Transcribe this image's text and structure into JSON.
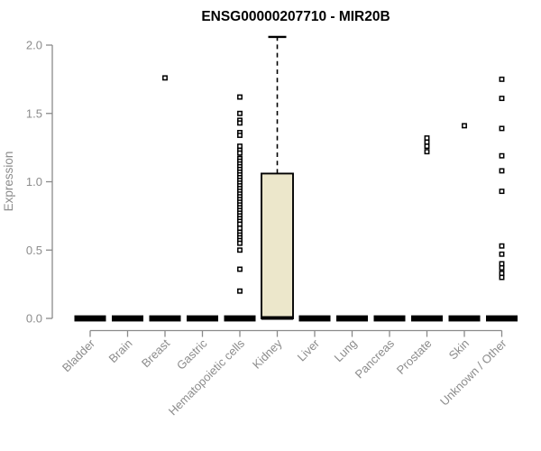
{
  "chart_data": {
    "type": "boxplot",
    "title": "ENSG00000207710 - MIR20B",
    "ylabel": "Expression",
    "xlabel": "",
    "ylim": [
      0.0,
      2.0
    ],
    "yticks": [
      0.0,
      0.5,
      1.0,
      1.5,
      2.0
    ],
    "grid": false,
    "legend": "none",
    "categories": [
      "Bladder",
      "Brain",
      "Breast",
      "Gastric",
      "Hematopoietic cells",
      "Kidney",
      "Liver",
      "Lung",
      "Pancreas",
      "Prostate",
      "Skin",
      "Unknown / Other"
    ],
    "boxes": [
      {
        "category": "Bladder",
        "q1": 0,
        "median": 0,
        "q3": 0,
        "whisker_low": 0,
        "whisker_high": 0,
        "outliers": []
      },
      {
        "category": "Brain",
        "q1": 0,
        "median": 0,
        "q3": 0,
        "whisker_low": 0,
        "whisker_high": 0,
        "outliers": []
      },
      {
        "category": "Breast",
        "q1": 0,
        "median": 0,
        "q3": 0,
        "whisker_low": 0,
        "whisker_high": 0,
        "outliers": [
          1.76
        ]
      },
      {
        "category": "Gastric",
        "q1": 0,
        "median": 0,
        "q3": 0,
        "whisker_low": 0,
        "whisker_high": 0,
        "outliers": []
      },
      {
        "category": "Hematopoietic cells",
        "q1": 0,
        "median": 0,
        "q3": 0,
        "whisker_low": 0,
        "whisker_high": 0,
        "outliers": [
          1.62,
          1.5,
          1.45,
          1.43,
          1.36,
          1.34,
          1.26,
          1.23,
          1.21,
          1.17,
          1.15,
          1.13,
          1.11,
          1.09,
          1.07,
          1.05,
          1.03,
          1.01,
          0.99,
          0.97,
          0.95,
          0.93,
          0.91,
          0.89,
          0.87,
          0.85,
          0.83,
          0.81,
          0.79,
          0.77,
          0.75,
          0.73,
          0.71,
          0.69,
          0.66,
          0.63,
          0.61,
          0.59,
          0.57,
          0.55,
          0.5,
          0.36,
          0.2
        ]
      },
      {
        "category": "Kidney",
        "q1": 0,
        "median": 0,
        "q3": 1.06,
        "whisker_low": 0,
        "whisker_high": 2.06,
        "outliers": []
      },
      {
        "category": "Liver",
        "q1": 0,
        "median": 0,
        "q3": 0,
        "whisker_low": 0,
        "whisker_high": 0,
        "outliers": []
      },
      {
        "category": "Lung",
        "q1": 0,
        "median": 0,
        "q3": 0,
        "whisker_low": 0,
        "whisker_high": 0,
        "outliers": []
      },
      {
        "category": "Pancreas",
        "q1": 0,
        "median": 0,
        "q3": 0,
        "whisker_low": 0,
        "whisker_high": 0,
        "outliers": []
      },
      {
        "category": "Prostate",
        "q1": 0,
        "median": 0,
        "q3": 0,
        "whisker_low": 0,
        "whisker_high": 0,
        "outliers": [
          1.32,
          1.29,
          1.26,
          1.22
        ]
      },
      {
        "category": "Skin",
        "q1": 0,
        "median": 0,
        "q3": 0,
        "whisker_low": 0,
        "whisker_high": 0,
        "outliers": [
          1.41
        ]
      },
      {
        "category": "Unknown / Other",
        "q1": 0,
        "median": 0,
        "q3": 0,
        "whisker_low": 0,
        "whisker_high": 0,
        "outliers": [
          1.75,
          1.61,
          1.39,
          1.19,
          1.08,
          0.93,
          0.53,
          0.47,
          0.4,
          0.37,
          0.33,
          0.3
        ]
      }
    ],
    "colors": {
      "box_fill": "#ECE7CB",
      "box_border": "#000000",
      "whisker": "#000000",
      "outlier_border": "#000000",
      "outlier_fill": "#ffffff",
      "axis_line": "#8a8a8a",
      "axis_text": "#8c8c8c",
      "title_text": "#000000",
      "background": "#ffffff"
    }
  }
}
